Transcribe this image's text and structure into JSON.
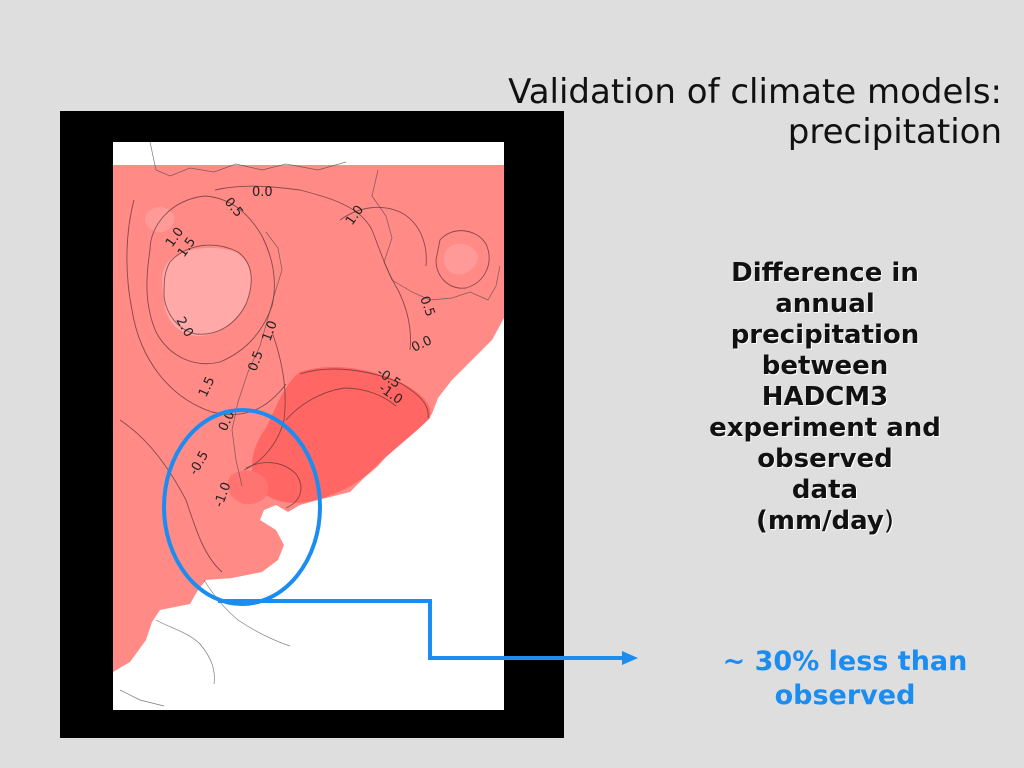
{
  "title": {
    "line1": "Validation of climate models:",
    "line2": "precipitation"
  },
  "description": {
    "lines": [
      "Difference in",
      "annual",
      "precipitation",
      "between",
      "HADCM3",
      "experiment and",
      "observed",
      "data"
    ],
    "units": "(mm/day",
    "units_suffix": ")"
  },
  "result": {
    "line1": "~ 30% less than",
    "line2": "observed"
  },
  "map": {
    "contour_labels": [
      "0.5",
      "0.0",
      "1.0",
      "1.5",
      "1.0",
      "0.5",
      "2.0",
      "0.5",
      "1.0",
      "0.0",
      "-0.5",
      "-1.0",
      "1.5",
      "0.0",
      "-0.5",
      "-1.0"
    ],
    "colors": {
      "land_anomaly": "#ff8a86",
      "strong_positive": "#ffb3b3",
      "negative": "#ff6461",
      "ocean": "#ffffff",
      "highlight": "#1b8cf0"
    }
  }
}
